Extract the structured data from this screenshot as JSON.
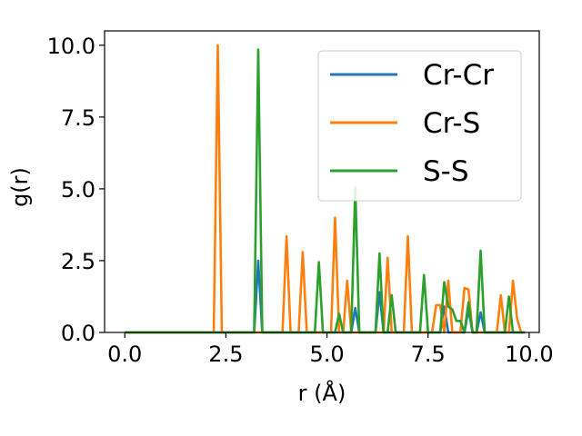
{
  "chart_data": {
    "type": "line",
    "title": "",
    "xlabel": "r (Å)",
    "ylabel": "g(r)",
    "xlim": [
      -0.5,
      10.25
    ],
    "ylim": [
      0,
      10.5
    ],
    "xticks": [
      0.0,
      2.5,
      5.0,
      7.5,
      10.0
    ],
    "xtick_labels": [
      "0.0",
      "2.5",
      "5.0",
      "7.5",
      "10.0"
    ],
    "yticks": [
      0.0,
      2.5,
      5.0,
      7.5,
      10.0
    ],
    "ytick_labels": [
      "0.0",
      "2.5",
      "5.0",
      "7.5",
      "10.0"
    ],
    "grid": false,
    "legend_position": "top-right",
    "series": [
      {
        "name": "Cr-Cr",
        "color": "#1f77b4",
        "x": [
          0.0,
          3.2,
          3.3,
          3.4,
          5.6,
          5.7,
          5.8,
          6.2,
          6.3,
          6.4,
          7.8,
          7.9,
          8.0,
          8.4,
          8.5,
          8.6,
          8.7,
          8.8,
          8.9,
          9.9
        ],
        "y": [
          0.0,
          0.0,
          2.5,
          0.0,
          0.0,
          0.85,
          0.0,
          0.0,
          1.4,
          0.0,
          0.0,
          0.9,
          0.0,
          0.0,
          0.8,
          0.0,
          0.0,
          0.7,
          0.0,
          0.0
        ]
      },
      {
        "name": "Cr-S",
        "color": "#ff7f0e",
        "x": [
          0.0,
          2.2,
          2.3,
          2.4,
          3.9,
          4.0,
          4.1,
          4.3,
          4.4,
          4.5,
          5.1,
          5.2,
          5.3,
          5.4,
          5.5,
          5.6,
          6.4,
          6.5,
          6.6,
          6.9,
          7.0,
          7.1,
          7.6,
          7.7,
          7.8,
          7.9,
          8.0,
          8.1,
          8.2,
          8.3,
          8.4,
          8.5,
          8.6,
          9.1,
          9.2,
          9.3,
          9.4,
          9.5,
          9.6,
          9.7,
          9.8,
          9.9
        ],
        "y": [
          0.0,
          0.0,
          10.0,
          0.0,
          0.0,
          3.35,
          0.0,
          0.0,
          2.8,
          0.0,
          0.0,
          4.0,
          0.0,
          0.0,
          1.8,
          0.0,
          0.0,
          2.6,
          0.0,
          0.0,
          3.35,
          0.0,
          0.0,
          0.95,
          0.95,
          0.0,
          1.8,
          0.0,
          0.0,
          0.0,
          1.55,
          1.5,
          0.0,
          0.0,
          0.0,
          1.3,
          0.0,
          0.0,
          1.8,
          0.5,
          0.0,
          0.0
        ]
      },
      {
        "name": "S-S",
        "color": "#2ca02c",
        "x": [
          0.0,
          3.2,
          3.3,
          3.4,
          4.7,
          4.8,
          4.9,
          5.2,
          5.3,
          5.4,
          5.6,
          5.7,
          5.8,
          6.2,
          6.3,
          6.4,
          6.5,
          6.6,
          6.7,
          7.3,
          7.4,
          7.5,
          7.8,
          7.9,
          8.0,
          8.1,
          8.2,
          8.3,
          8.4,
          8.5,
          8.6,
          8.7,
          8.8,
          8.9,
          9.3,
          9.4,
          9.5,
          9.6,
          9.9
        ],
        "y": [
          0.0,
          0.0,
          9.85,
          0.0,
          0.0,
          2.45,
          0.0,
          0.0,
          0.65,
          0.0,
          0.0,
          5.05,
          0.0,
          0.0,
          2.75,
          0.0,
          0.0,
          1.3,
          0.0,
          0.0,
          2.0,
          0.0,
          0.0,
          1.75,
          0.9,
          0.8,
          0.4,
          0.4,
          0.0,
          1.05,
          0.0,
          0.0,
          2.85,
          0.0,
          0.0,
          0.0,
          1.25,
          0.0,
          0.0
        ]
      }
    ]
  }
}
